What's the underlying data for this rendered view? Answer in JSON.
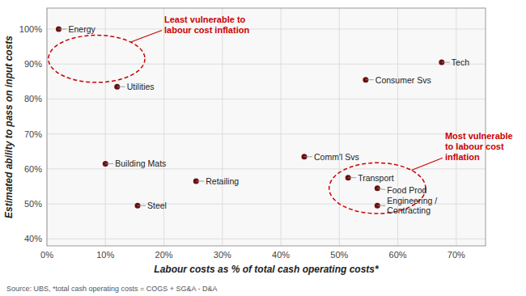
{
  "chart_data": {
    "type": "scatter",
    "x": [
      0.02,
      0.12,
      0.1,
      0.155,
      0.255,
      0.44,
      0.545,
      0.675,
      0.515,
      0.565,
      0.565
    ],
    "values": [
      1.0,
      0.835,
      0.615,
      0.495,
      0.565,
      0.635,
      0.855,
      0.905,
      0.575,
      0.545,
      0.495
    ],
    "point_labels": [
      "Energy",
      "Utilities",
      "Building Mats",
      "Steel",
      "Retailing",
      "Comm'l Svs",
      "Consumer Svs",
      "Tech",
      "Transport",
      "Food Prod",
      "Engineering /\nContracting"
    ],
    "color": "#6B1010",
    "xlabel": "Labour costs as % of total cash operating costs*",
    "ylabel": "Estimated ability to pass on input costs",
    "xlim": [
      0.0,
      0.75
    ],
    "ylim": [
      0.38,
      1.06
    ],
    "xticks": [
      {
        "value": 0.0,
        "label": "0%"
      },
      {
        "value": 0.1,
        "label": "10%"
      },
      {
        "value": 0.2,
        "label": "20%"
      },
      {
        "value": 0.3,
        "label": "30%"
      },
      {
        "value": 0.4,
        "label": "40%"
      },
      {
        "value": 0.5,
        "label": "50%"
      },
      {
        "value": 0.6,
        "label": "60%"
      },
      {
        "value": 0.7,
        "label": "70%"
      }
    ],
    "yticks": [
      {
        "value": 0.4,
        "label": "40%"
      },
      {
        "value": 0.5,
        "label": "50%"
      },
      {
        "value": 0.6,
        "label": "60%"
      },
      {
        "value": 0.7,
        "label": "70%"
      },
      {
        "value": 0.8,
        "label": "80%"
      },
      {
        "value": 0.9,
        "label": "90%"
      },
      {
        "value": 1.0,
        "label": "100%"
      }
    ],
    "grid": true,
    "annotations": [
      {
        "text": "Least vulnerable to\nlabour cost inflation",
        "cx": 0.085,
        "cy": 0.915,
        "width": 0.165,
        "height": 0.135,
        "color": "#cc0000"
      },
      {
        "text": "Most vulnerable\nto labour cost\ninflation",
        "cx": 0.565,
        "cy": 0.545,
        "width": 0.165,
        "height": 0.145,
        "color": "#cc0000"
      }
    ],
    "source": "Source: UBS, *total cash operating costs = COGS + SG&A - D&A"
  }
}
